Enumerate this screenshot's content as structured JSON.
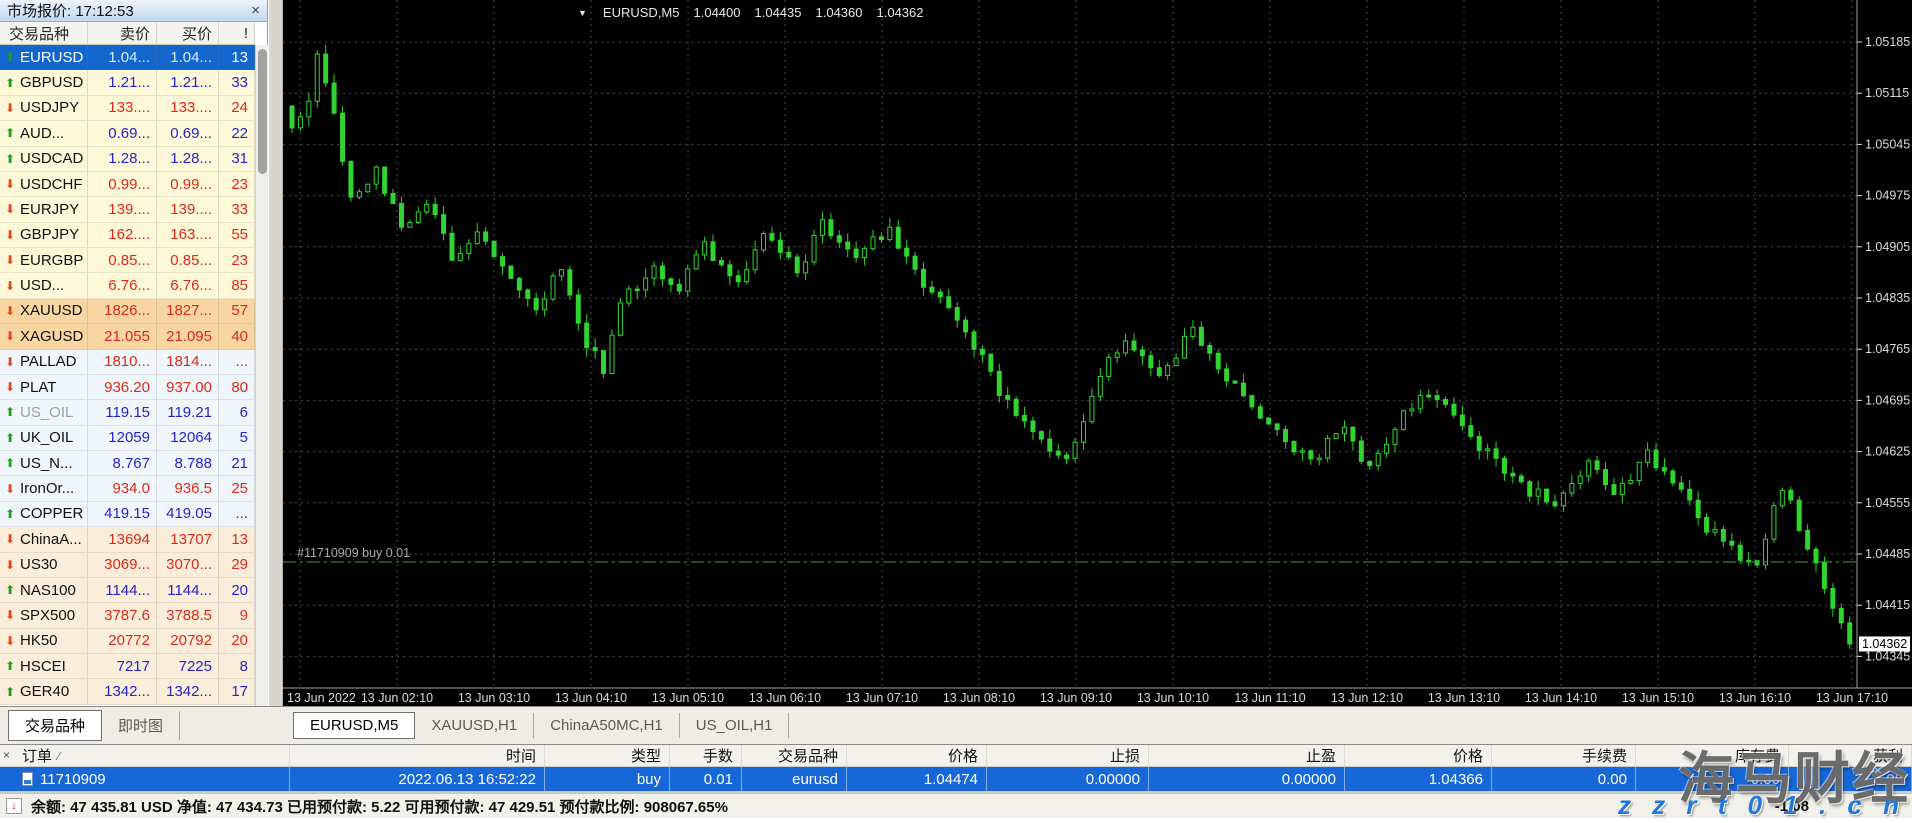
{
  "market_watch": {
    "title": "市场报价: 17:12:53",
    "close_label": "×",
    "columns": [
      "交易品种",
      "卖价",
      "买价",
      "!"
    ],
    "tabs": [
      {
        "label": "交易品种",
        "active": true
      },
      {
        "label": "即时图",
        "active": false
      }
    ],
    "rows": [
      {
        "symbol": "EURUSD",
        "dir": "up",
        "sell": "1.04...",
        "buy": "1.04...",
        "spread": "13",
        "bg": "forex",
        "selected": true
      },
      {
        "symbol": "GBPUSD",
        "dir": "up",
        "sell": "1.21...",
        "buy": "1.21...",
        "spread": "33",
        "bg": "forex"
      },
      {
        "symbol": "USDJPY",
        "dir": "down",
        "sell": "133....",
        "buy": "133....",
        "spread": "24",
        "bg": "forex"
      },
      {
        "symbol": "AUD...",
        "dir": "up",
        "sell": "0.69...",
        "buy": "0.69...",
        "spread": "22",
        "bg": "forex"
      },
      {
        "symbol": "USDCAD",
        "dir": "up",
        "sell": "1.28...",
        "buy": "1.28...",
        "spread": "31",
        "bg": "forex"
      },
      {
        "symbol": "USDCHF",
        "dir": "down",
        "sell": "0.99...",
        "buy": "0.99...",
        "spread": "23",
        "bg": "forex"
      },
      {
        "symbol": "EURJPY",
        "dir": "down",
        "sell": "139....",
        "buy": "139....",
        "spread": "33",
        "bg": "forex"
      },
      {
        "symbol": "GBPJPY",
        "dir": "down",
        "sell": "162....",
        "buy": "163....",
        "spread": "55",
        "bg": "forex"
      },
      {
        "symbol": "EURGBP",
        "dir": "down",
        "sell": "0.85...",
        "buy": "0.85...",
        "spread": "23",
        "bg": "forex"
      },
      {
        "symbol": "USD...",
        "dir": "down",
        "sell": "6.76...",
        "buy": "6.76...",
        "spread": "85",
        "bg": "forex"
      },
      {
        "symbol": "XAUUSD",
        "dir": "down",
        "sell": "1826...",
        "buy": "1827...",
        "spread": "57",
        "bg": "metal"
      },
      {
        "symbol": "XAGUSD",
        "dir": "down",
        "sell": "21.055",
        "buy": "21.095",
        "spread": "40",
        "bg": "metal"
      },
      {
        "symbol": "PALLAD",
        "dir": "down",
        "sell": "1810...",
        "buy": "1814...",
        "spread": "...",
        "bg": "pale"
      },
      {
        "symbol": "PLAT",
        "dir": "down",
        "sell": "936.20",
        "buy": "937.00",
        "spread": "80",
        "bg": "pale"
      },
      {
        "symbol": "US_OIL",
        "dir": "up",
        "sell": "119.15",
        "buy": "119.21",
        "spread": "6",
        "bg": "pale",
        "muted": true
      },
      {
        "symbol": "UK_OIL",
        "dir": "up",
        "sell": "12059",
        "buy": "12064",
        "spread": "5",
        "bg": "pale"
      },
      {
        "symbol": "US_N...",
        "dir": "up",
        "sell": "8.767",
        "buy": "8.788",
        "spread": "21",
        "bg": "pale"
      },
      {
        "symbol": "IronOr...",
        "dir": "down",
        "sell": "934.0",
        "buy": "936.5",
        "spread": "25",
        "bg": "pale"
      },
      {
        "symbol": "COPPER",
        "dir": "up",
        "sell": "419.15",
        "buy": "419.05",
        "spread": "...",
        "bg": "pale"
      },
      {
        "symbol": "ChinaA...",
        "dir": "down",
        "sell": "13694",
        "buy": "13707",
        "spread": "13",
        "bg": "index"
      },
      {
        "symbol": "US30",
        "dir": "down",
        "sell": "3069...",
        "buy": "3070...",
        "spread": "29",
        "bg": "index"
      },
      {
        "symbol": "NAS100",
        "dir": "up",
        "sell": "1144...",
        "buy": "1144...",
        "spread": "20",
        "bg": "index"
      },
      {
        "symbol": "SPX500",
        "dir": "down",
        "sell": "3787.6",
        "buy": "3788.5",
        "spread": "9",
        "bg": "index"
      },
      {
        "symbol": "HK50",
        "dir": "down",
        "sell": "20772",
        "buy": "20792",
        "spread": "20",
        "bg": "index"
      },
      {
        "symbol": "HSCEI",
        "dir": "up",
        "sell": "7217",
        "buy": "7225",
        "spread": "8",
        "bg": "index"
      },
      {
        "symbol": "GER40",
        "dir": "up",
        "sell": "1342...",
        "buy": "1342...",
        "spread": "17",
        "bg": "index"
      }
    ]
  },
  "icons": {
    "up_arrow": "⬆",
    "down_arrow": "⬇",
    "dropdown": "▼",
    "close": "×",
    "status_arrow": "↓",
    "sort_indicator": "∕",
    "watermark_close": "×"
  },
  "chart": {
    "header": {
      "symbol": "EURUSD,M5",
      "open": "1.04400",
      "high": "1.04435",
      "low": "1.04360",
      "close": "1.04362"
    },
    "tabs": [
      {
        "label": "EURUSD,M5",
        "active": true
      },
      {
        "label": "XAUUSD,H1",
        "active": false
      },
      {
        "label": "ChinaA50MC,H1",
        "active": false
      },
      {
        "label": "US_OIL,H1",
        "active": false
      }
    ],
    "colors": {
      "background": "#000000",
      "grid": "#4A4A4A",
      "candle": "#30D330",
      "bull_fill": "#000000",
      "buy_line": "#3FA33F",
      "axis_text": "#DCDCDC",
      "axis_line": "#A0A0A0",
      "badge_bg": "#FFFFFF",
      "badge_text": "#000000",
      "position_label_color": "#A8A8A8"
    }
  },
  "chart_data": {
    "type": "candlestick",
    "symbol": "EURUSD",
    "timeframe": "M5",
    "title": "EURUSD,M5",
    "current_bar_ohlc": {
      "open": 1.044,
      "high": 1.04435,
      "low": 1.0436,
      "close": 1.04362
    },
    "current_price": "1.04362",
    "x_labels": [
      "13 Jun 2022",
      "13 Jun 02:10",
      "13 Jun 03:10",
      "13 Jun 04:10",
      "13 Jun 05:10",
      "13 Jun 06:10",
      "13 Jun 07:10",
      "13 Jun 08:10",
      "13 Jun 09:10",
      "13 Jun 10:10",
      "13 Jun 11:10",
      "13 Jun 12:10",
      "13 Jun 13:10",
      "13 Jun 14:10",
      "13 Jun 15:10",
      "13 Jun 16:10",
      "13 Jun 17:10"
    ],
    "y_ticks": [
      "1.05185",
      "1.05115",
      "1.05045",
      "1.04975",
      "1.04905",
      "1.04835",
      "1.04765",
      "1.04695",
      "1.04625",
      "1.04555",
      "1.04485",
      "1.04415",
      "1.04345"
    ],
    "axis": {
      "top_price": 1.05185,
      "price_step": 0.0007,
      "top_y": 42,
      "step_py": 51.2,
      "ylim": [
        1.0432,
        1.05208
      ]
    },
    "buy_line": {
      "price": 1.04474,
      "label": "#11710909 buy 0.01"
    },
    "bars_count": 186,
    "close_path_anchors": [
      [
        0,
        1.0506
      ],
      [
        2,
        1.0511
      ],
      [
        3,
        1.0516
      ],
      [
        5,
        1.0508
      ],
      [
        7,
        1.0497
      ],
      [
        10,
        1.0501
      ],
      [
        13,
        1.0493
      ],
      [
        16,
        1.0497
      ],
      [
        19,
        1.0489
      ],
      [
        22,
        1.0493
      ],
      [
        26,
        1.0487
      ],
      [
        29,
        1.0482
      ],
      [
        32,
        1.0488
      ],
      [
        35,
        1.0477
      ],
      [
        37,
        1.0474
      ],
      [
        39,
        1.0483
      ],
      [
        43,
        1.0488
      ],
      [
        46,
        1.0485
      ],
      [
        49,
        1.0491
      ],
      [
        53,
        1.0485
      ],
      [
        56,
        1.0492
      ],
      [
        60,
        1.0487
      ],
      [
        63,
        1.0494
      ],
      [
        67,
        1.0489
      ],
      [
        71,
        1.0493
      ],
      [
        74,
        1.0487
      ],
      [
        78,
        1.0482
      ],
      [
        82,
        1.0475
      ],
      [
        85,
        1.0469
      ],
      [
        89,
        1.0464
      ],
      [
        92,
        1.0461
      ],
      [
        96,
        1.0473
      ],
      [
        99,
        1.0478
      ],
      [
        103,
        1.0473
      ],
      [
        107,
        1.0479
      ],
      [
        110,
        1.0474
      ],
      [
        114,
        1.0468
      ],
      [
        118,
        1.0464
      ],
      [
        121,
        1.0461
      ],
      [
        125,
        1.0466
      ],
      [
        128,
        1.046
      ],
      [
        132,
        1.0468
      ],
      [
        135,
        1.0471
      ],
      [
        139,
        1.0466
      ],
      [
        143,
        1.0461
      ],
      [
        146,
        1.0458
      ],
      [
        150,
        1.0455
      ],
      [
        154,
        1.0461
      ],
      [
        157,
        1.0456
      ],
      [
        161,
        1.0462
      ],
      [
        164,
        1.0458
      ],
      [
        168,
        1.0452
      ],
      [
        171,
        1.0449
      ],
      [
        174,
        1.0447
      ],
      [
        177,
        1.0458
      ],
      [
        179,
        1.0452
      ],
      [
        181,
        1.0447
      ],
      [
        183,
        1.0441
      ],
      [
        184,
        1.0439
      ],
      [
        185,
        1.04362
      ]
    ],
    "wiggle": 0.00013
  },
  "toolbox": {
    "columns": [
      "订单",
      "时间",
      "类型",
      "手数",
      "交易品种",
      "价格",
      "止损",
      "止盈",
      "价格",
      "手续费",
      "库存费",
      "获利"
    ],
    "order": {
      "values": [
        "11710909",
        "2022.06.13 16:52:22",
        "buy",
        "0.01",
        "eurusd",
        "1.04474",
        "0.00000",
        "0.00000",
        "1.04366",
        "0.00",
        "0.00",
        "-1.08"
      ]
    },
    "total_profit_bottom": "-1.08"
  },
  "status_bar": {
    "text": "余额: 47 435.81 USD  净值: 47 434.73  已用预付款: 5.22  可用预付款: 47 429.51  预付款比例: 908067.65%"
  },
  "watermark": {
    "line1": "海马财经",
    "line2": "z z r t 0 1 . c n"
  }
}
